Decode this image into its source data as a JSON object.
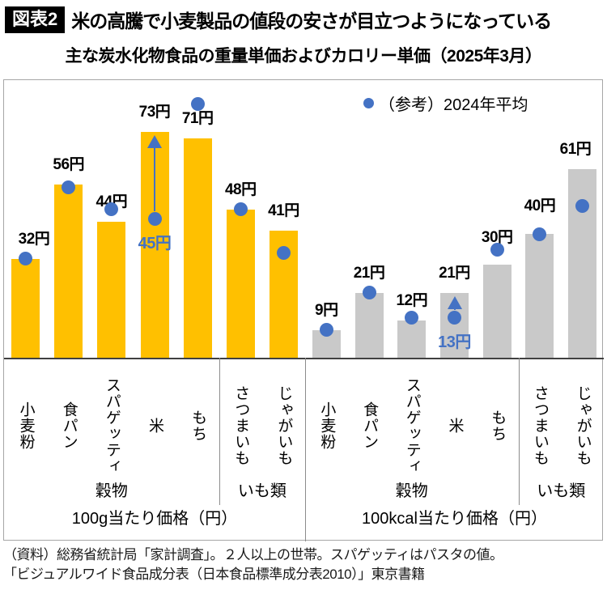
{
  "header": {
    "badge": "図表2",
    "title": "米の高騰で小麦製品の値段の安さが目立つようになっている"
  },
  "subtitle": "主な炭水化物食品の重量単価およびカロリー単価（2025年3月）",
  "footer": {
    "line1": "（資料）総務省統計局「家計調査」。２人以上の世帯。スパゲッティはパスタの値。",
    "line2": "「ビジュアルワイド食品成分表（日本食品標準成分表2010）」東京書籍"
  },
  "colors": {
    "gold": "#FFC000",
    "gray": "#C9C9C9",
    "blue": "#4472C4",
    "axis": "#404040",
    "border": "#A6A6A6"
  },
  "chart_data": {
    "type": "bar",
    "legend_label": "（参考）2024年平均",
    "legend_note": "blue dots show 2024 yearly average",
    "ylim": [
      0,
      90
    ],
    "grid": false,
    "unit": "円",
    "categories": [
      "小麦粉",
      "食パン",
      "スパゲッティ",
      "米",
      "もち",
      "さつまいも",
      "じゃがいも"
    ],
    "sub_groups": [
      {
        "label": "穀物",
        "bars": 5
      },
      {
        "label": "いも類",
        "bars": 2
      }
    ],
    "groups": [
      {
        "axis_title": "100g当たり価格（円）",
        "bar_color_key": "gold",
        "bar_values": [
          32,
          56,
          44,
          73,
          71,
          48,
          41
        ],
        "bar_labels": [
          "32円",
          "56円",
          "44円",
          "73円",
          "71円",
          "48円",
          "41円"
        ],
        "dot_values_2024_est": [
          32,
          55,
          48,
          45,
          82,
          48,
          34
        ],
        "label_raise": [
          0,
          0,
          0,
          0,
          0,
          0,
          0
        ],
        "annotation": {
          "index": 3,
          "label": "45円",
          "from_value": 45,
          "to_value": 73,
          "arrow": true
        }
      },
      {
        "axis_title": "100kcal当たり価格（円）",
        "bar_color_key": "gray",
        "bar_values": [
          9,
          21,
          12,
          21,
          30,
          40,
          61
        ],
        "bar_labels": [
          "9円",
          "21円",
          "12円",
          "21円",
          "30円",
          "40円",
          "61円"
        ],
        "dot_values_2024_est": [
          9,
          21,
          13,
          13,
          35,
          40,
          49
        ],
        "label_raise": [
          0,
          0,
          0,
          0,
          9,
          10,
          0
        ],
        "annotation": {
          "index": 3,
          "label": "13円",
          "from_value": 13,
          "to_value": 21,
          "arrow": true
        }
      }
    ]
  }
}
